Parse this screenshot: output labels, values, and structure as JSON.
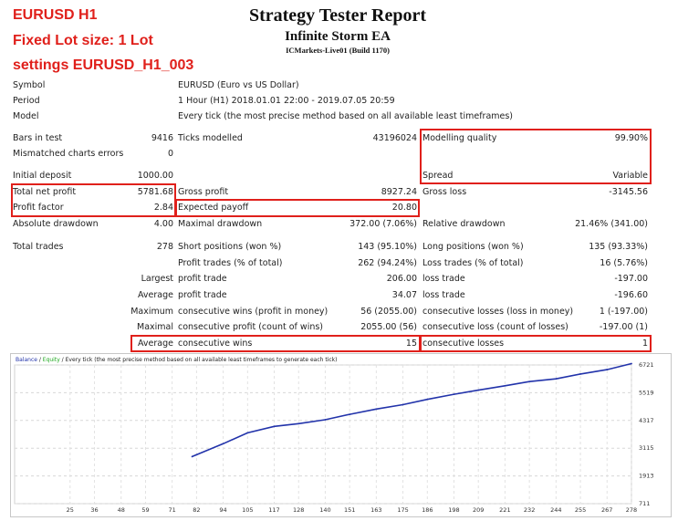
{
  "overlay": {
    "line1": "EURUSD H1",
    "line2": "Fixed Lot size: 1 Lot",
    "line3": "settings EURUSD_H1_003"
  },
  "report": {
    "title": "Strategy Tester Report",
    "ea_name": "Infinite Storm EA",
    "server": "ICMarkets-Live01 (Build 1170)"
  },
  "info": {
    "symbol_label": "Symbol",
    "symbol_value": "EURUSD (Euro vs US Dollar)",
    "period_label": "Period",
    "period_value": "1 Hour (H1) 2018.01.01 22:00 - 2019.07.05 20:59",
    "model_label": "Model",
    "model_value": "Every tick (the most precise method based on all available least timeframes)"
  },
  "stats": {
    "bars_label": "Bars in test",
    "bars_value": "9416",
    "ticks_label": "Ticks modelled",
    "ticks_value": "43196024",
    "quality_label": "Modelling quality",
    "quality_value": "99.90%",
    "mismatch_label": "Mismatched charts errors",
    "mismatch_value": "0",
    "deposit_label": "Initial deposit",
    "deposit_value": "1000.00",
    "spread_label": "Spread",
    "spread_value": "Variable",
    "net_profit_label": "Total net profit",
    "net_profit_value": "5781.68",
    "gross_profit_label": "Gross profit",
    "gross_profit_value": "8927.24",
    "gross_loss_label": "Gross loss",
    "gross_loss_value": "-3145.56",
    "pf_label": "Profit factor",
    "pf_value": "2.84",
    "ep_label": "Expected payoff",
    "ep_value": "20.80",
    "abs_dd_label": "Absolute drawdown",
    "abs_dd_value": "4.00",
    "max_dd_label": "Maximal drawdown",
    "max_dd_value": "372.00 (7.06%)",
    "rel_dd_label": "Relative drawdown",
    "rel_dd_value": "21.46% (341.00)",
    "trades_label": "Total trades",
    "trades_value": "278",
    "short_label": "Short positions (won %)",
    "short_value": "143 (95.10%)",
    "long_label": "Long positions (won %)",
    "long_value": "135 (93.33%)",
    "pt_label": "Profit trades (% of total)",
    "pt_value": "262 (94.24%)",
    "lt_label": "Loss trades (% of total)",
    "lt_value": "16 (5.76%)",
    "largest": "Largest",
    "largest_pt_label": "profit trade",
    "largest_pt_value": "206.00",
    "largest_lt_label": "loss trade",
    "largest_lt_value": "-197.00",
    "average": "Average",
    "avg_pt_label": "profit trade",
    "avg_pt_value": "34.07",
    "avg_lt_label": "loss trade",
    "avg_lt_value": "-196.60",
    "maximum": "Maximum",
    "max_cw_label": "consecutive wins (profit in money)",
    "max_cw_value": "56 (2055.00)",
    "max_cl_label": "consecutive losses (loss in money)",
    "max_cl_value": "1 (-197.00)",
    "maximal": "Maximal",
    "mx_cp_label": "consecutive profit (count of wins)",
    "mx_cp_value": "2055.00 (56)",
    "mx_cl_label": "consecutive loss (count of losses)",
    "mx_cl_value": "-197.00 (1)",
    "average2": "Average",
    "avg_cw_label": "consecutive wins",
    "avg_cw_value": "15",
    "avg_cl_label": "consecutive losses",
    "avg_cl_value": "1"
  },
  "chart": {
    "legend_balance": "Balance",
    "legend_sep1": " / ",
    "legend_equity": "Equity",
    "legend_rest": " / Every tick (the most precise method based on all available least timeframes to generate each tick)",
    "balance_color": "#2233aa",
    "equity_color": "#22aa22",
    "highlight_color": "#e0201b"
  },
  "chart_data": {
    "type": "line",
    "title": "",
    "xlabel": "",
    "ylabel": "",
    "x_ticks": [
      "25",
      "36",
      "48",
      "59",
      "71",
      "82",
      "94",
      "105",
      "117",
      "128",
      "140",
      "151",
      "163",
      "175",
      "186",
      "198",
      "209",
      "221",
      "232",
      "244",
      "255",
      "267",
      "278"
    ],
    "y_ticks": [
      "6721",
      "5519",
      "4317",
      "3115",
      "1913",
      "711"
    ],
    "ylim": [
      711,
      6721
    ],
    "xlim": [
      0,
      278
    ],
    "series": [
      {
        "name": "Balance",
        "x": [
          80,
          82,
          94,
          105,
          117,
          128,
          140,
          151,
          163,
          175,
          186,
          198,
          209,
          221,
          232,
          244,
          255,
          267,
          278
        ],
        "values": [
          2750,
          2830,
          3310,
          3780,
          4060,
          4180,
          4350,
          4580,
          4810,
          5000,
          5230,
          5450,
          5630,
          5820,
          6000,
          6120,
          6330,
          6520,
          6781
        ]
      }
    ]
  }
}
